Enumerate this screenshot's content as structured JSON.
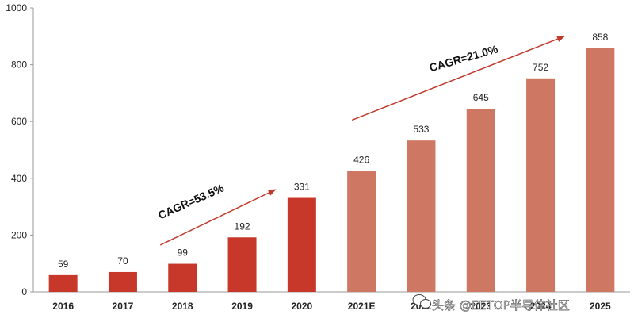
{
  "chart_data": {
    "type": "bar",
    "categories": [
      "2016",
      "2017",
      "2018",
      "2019",
      "2020",
      "2021E",
      "2022",
      "2023",
      "2024",
      "2025"
    ],
    "x_tick_labels": [
      "2016",
      "2017",
      "2018",
      "2019",
      "2020",
      "2021E",
      "2022",
      "2023",
      "2024",
      "2025"
    ],
    "values": [
      59,
      70,
      99,
      192,
      331,
      426,
      533,
      645,
      752,
      858
    ],
    "data_labels": [
      "59",
      "70",
      "99",
      "192",
      "331",
      "426",
      "533",
      "645",
      "752",
      "858"
    ],
    "ylim": [
      0,
      1000
    ],
    "yticks": [
      0,
      200,
      400,
      600,
      800,
      1000
    ],
    "ytick_labels": [
      "0",
      "200",
      "400",
      "600",
      "800",
      "1000"
    ],
    "title": "",
    "xlabel": "",
    "ylabel": "",
    "grid": false,
    "colors": {
      "actual": "#C8382A",
      "forecast": "#CE7864",
      "arrow": "#C0392B",
      "axis": "#999999"
    },
    "actual_count": 5,
    "annotations": [
      {
        "text": "CAGR=53.5%",
        "from_category": "2018",
        "to_category": "2020"
      },
      {
        "text": "CAGR=21.0%",
        "from_category": "2021E",
        "to_category": "2025"
      }
    ]
  },
  "watermark": {
    "text": "头条 @EETOP半导体社区",
    "icon": "wechat-icon"
  }
}
